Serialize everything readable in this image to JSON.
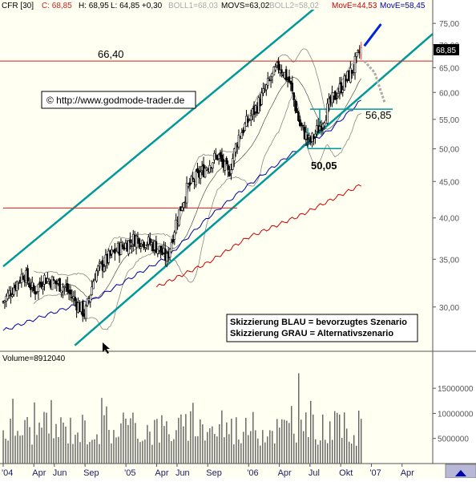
{
  "header": {
    "symbol": "CFR [30]",
    "close": "C: 68,85",
    "high": "H: 68,95",
    "low": "L: 64,85 +0,30",
    "boll1": "BOLL1=68,03",
    "movs": "MOVS=63,02",
    "boll2": "BOLL2=58,02",
    "move_red": "MovE=44,53",
    "move_blue": "MovE=58,45"
  },
  "colors": {
    "channel": "#009999",
    "resistance": "#d11f1f",
    "ma_long": "#cc0000",
    "ma_mid": "#0000aa",
    "candle": "#000000",
    "bollinger": "#888888",
    "scenario_blue": "#0022dd",
    "scenario_grey": "#aaaaaa",
    "last_price_bg": "#000000",
    "current_bar": "#ff4444"
  },
  "copyright": "© http://www.godmode-trader.de",
  "legend": {
    "line1": "Skizzierung BLAU = bevorzugtes Szenario",
    "line2": "Skizzierung GRAU = Alternativszenario"
  },
  "last_price_label": "68,85",
  "volume_label": "Volume=8912040",
  "chart_data": {
    "type": "candlestick",
    "price_axis": {
      "scale": "log",
      "range": [
        26,
        78
      ],
      "ticks": [
        "75,00",
        "70,00",
        "65,00",
        "60,00",
        "55,00",
        "50,00",
        "45,00",
        "40,00",
        "35,00",
        "30,00"
      ],
      "tick_values": [
        75,
        70,
        65,
        60,
        55,
        50,
        45,
        40,
        35,
        30
      ]
    },
    "volume_axis": {
      "range": [
        0,
        19500000
      ],
      "ticks": [
        "15000000",
        "10000000",
        "5000000"
      ],
      "tick_values": [
        15000000,
        10000000,
        5000000
      ]
    },
    "x_labels": [
      "'04",
      "Apr",
      "Jun",
      "Sep",
      "'05",
      "Apr",
      "Jun",
      "Sep",
      "'06",
      "Apr",
      "Jul",
      "Okt",
      "'07",
      "Apr"
    ],
    "time_range": [
      "2004-01",
      "2007-07"
    ],
    "annotations": [
      {
        "text": "66,40",
        "value": 66.4
      },
      {
        "text": "56,85",
        "value": 56.85
      },
      {
        "text": "50,05",
        "value": 50.05
      }
    ],
    "support_line": 41.3,
    "trend_channel": {
      "upper": [
        {
          "date": "2004-01",
          "value": 34.2
        },
        {
          "date": "2007-07",
          "value": 108
        }
      ],
      "middle": [
        {
          "date": "2004-08",
          "value": 26.5
        },
        {
          "date": "2007-07",
          "value": 72.5
        }
      ]
    },
    "price_path": [
      {
        "date": "2004-01",
        "value": 30.5
      },
      {
        "date": "2004-03",
        "value": 33.5
      },
      {
        "date": "2004-04",
        "value": 31.5
      },
      {
        "date": "2004-05",
        "value": 33
      },
      {
        "date": "2004-07",
        "value": 32
      },
      {
        "date": "2004-09",
        "value": 29.3
      },
      {
        "date": "2004-10",
        "value": 33.5
      },
      {
        "date": "2004-12",
        "value": 36
      },
      {
        "date": "2005-02",
        "value": 37.5
      },
      {
        "date": "2005-04",
        "value": 36.5
      },
      {
        "date": "2005-05",
        "value": 35
      },
      {
        "date": "2005-06",
        "value": 40
      },
      {
        "date": "2005-07",
        "value": 44
      },
      {
        "date": "2005-09",
        "value": 47.5
      },
      {
        "date": "2005-10",
        "value": 49
      },
      {
        "date": "2005-11",
        "value": 46
      },
      {
        "date": "2005-12",
        "value": 52
      },
      {
        "date": "2006-02",
        "value": 58
      },
      {
        "date": "2006-03",
        "value": 62
      },
      {
        "date": "2006-04",
        "value": 65.5
      },
      {
        "date": "2006-05",
        "value": 62
      },
      {
        "date": "2006-06",
        "value": 54
      },
      {
        "date": "2006-07",
        "value": 51
      },
      {
        "date": "2006-08",
        "value": 54
      },
      {
        "date": "2006-09",
        "value": 58
      },
      {
        "date": "2006-10",
        "value": 61
      },
      {
        "date": "2006-11",
        "value": 64
      },
      {
        "date": "2006-12",
        "value": 68.85
      }
    ],
    "moving_average_blue": [
      {
        "date": "2004-01",
        "value": 27.8
      },
      {
        "date": "2004-06",
        "value": 29.5
      },
      {
        "date": "2004-10",
        "value": 30.8
      },
      {
        "date": "2005-02",
        "value": 33.3
      },
      {
        "date": "2005-05",
        "value": 35.2
      },
      {
        "date": "2005-09",
        "value": 40
      },
      {
        "date": "2006-01",
        "value": 44.5
      },
      {
        "date": "2006-05",
        "value": 49
      },
      {
        "date": "2006-09",
        "value": 53.2
      },
      {
        "date": "2006-12",
        "value": 58.45
      }
    ],
    "moving_average_red": [
      {
        "date": "2005-04",
        "value": 32
      },
      {
        "date": "2005-09",
        "value": 34.6
      },
      {
        "date": "2006-01",
        "value": 37.6
      },
      {
        "date": "2006-06",
        "value": 40.3
      },
      {
        "date": "2006-12",
        "value": 44.53
      }
    ],
    "volume": [
      {
        "date": "2006-06",
        "value": 18000000
      },
      {
        "date": "2006-07",
        "value": 12500000
      },
      {
        "date": "2006-12",
        "value": 8912040
      }
    ],
    "scenario_blue": [
      {
        "date": "2006-12",
        "value": 69
      },
      {
        "date": "2007-01",
        "value": 76
      }
    ],
    "scenario_grey": [
      {
        "date": "2006-12",
        "value": 66.4
      },
      {
        "date": "2007-01",
        "value": 64
      },
      {
        "date": "2007-02",
        "value": 58
      }
    ]
  }
}
